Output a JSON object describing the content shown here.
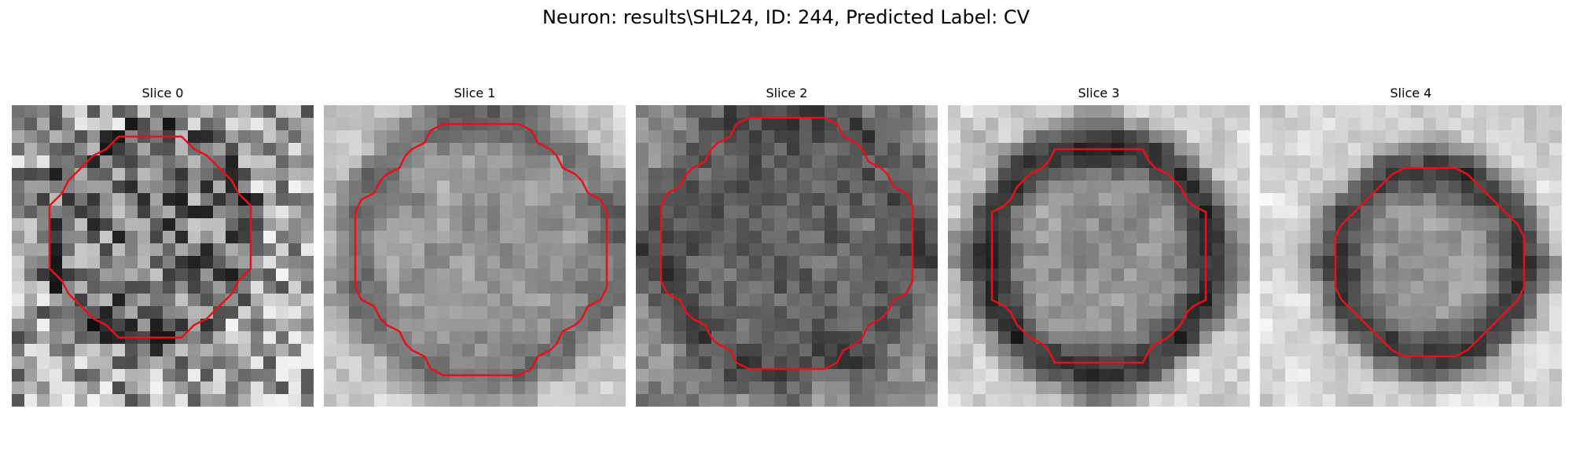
{
  "figure": {
    "title": "Neuron: results\\SHL24, ID: 244, Predicted Label: CV"
  },
  "panels": [
    {
      "title": "Slice 0"
    },
    {
      "title": "Slice 1"
    },
    {
      "title": "Slice 2"
    },
    {
      "title": "Slice 3"
    },
    {
      "title": "Slice 4"
    }
  ],
  "colors": {
    "contour": "#e8101a",
    "background": "#ffffff"
  }
}
